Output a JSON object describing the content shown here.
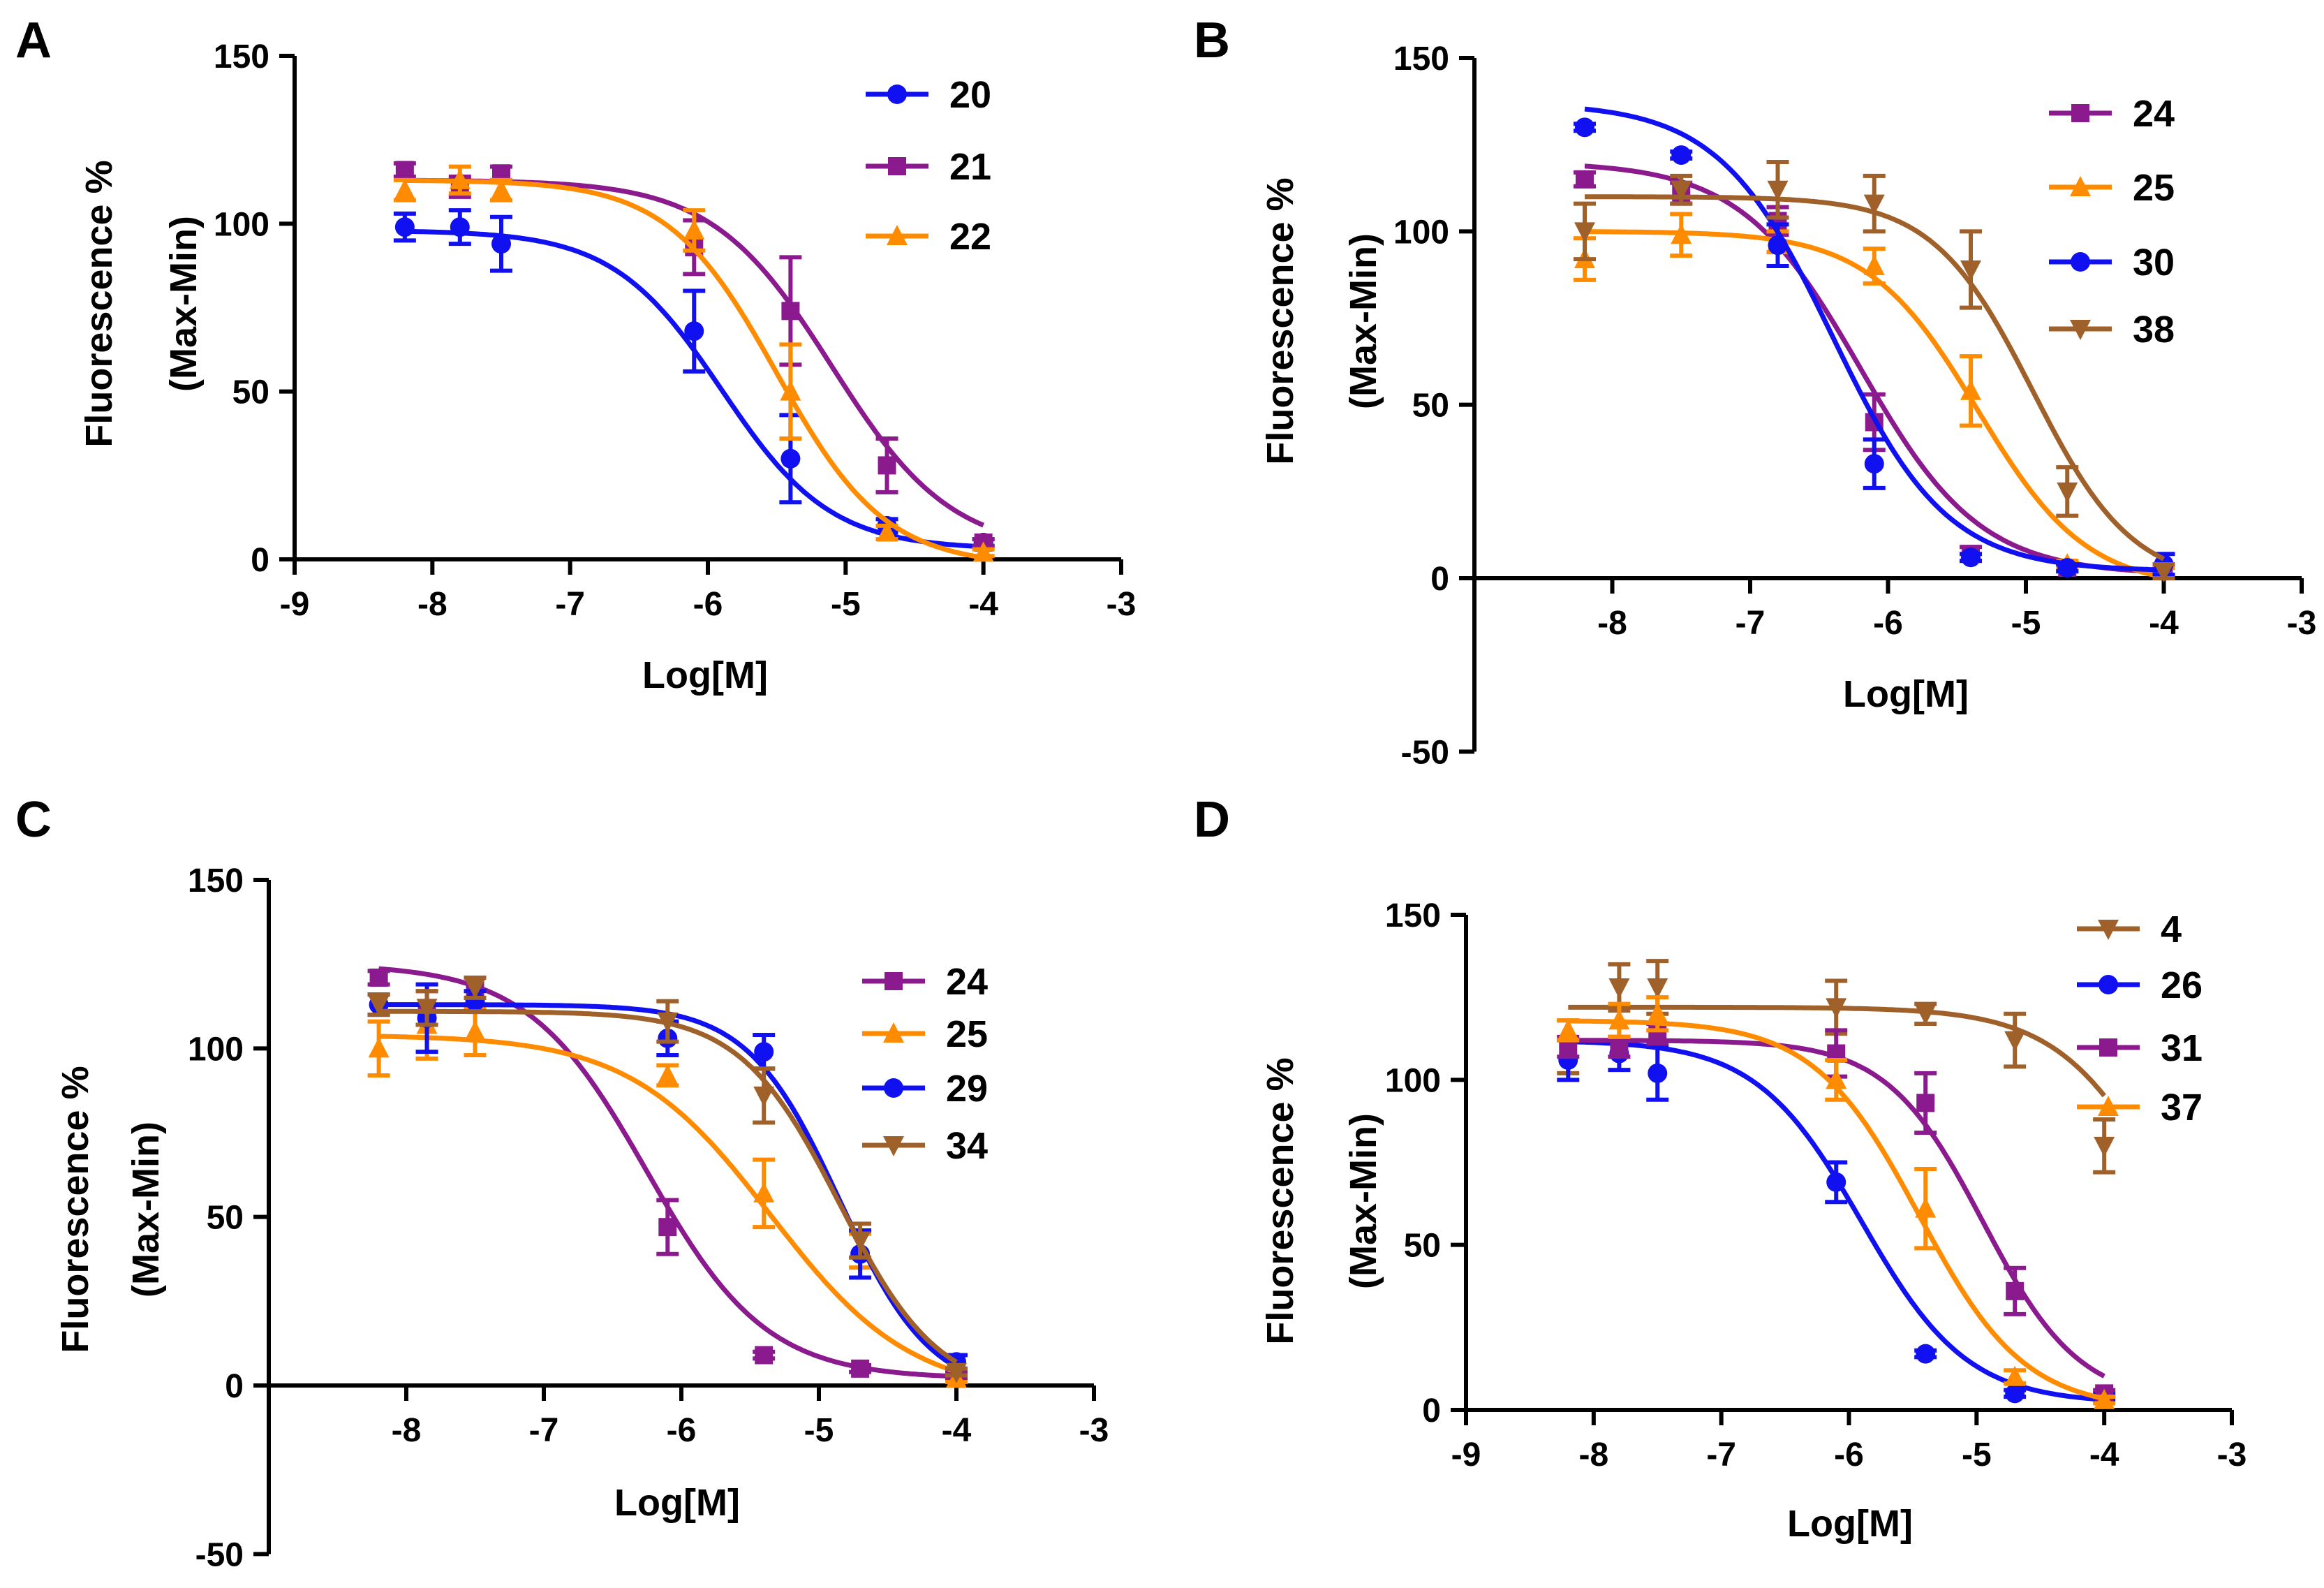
{
  "colors": {
    "blue": "#1010f0",
    "purple": "#8b1a8f",
    "orange": "#ff8c00",
    "brown": "#a0602a"
  },
  "chart_data": [
    {
      "panel": "A",
      "type": "line",
      "xlabel": "Log[M]",
      "ylabel": [
        "Fluorescence %",
        "(Max-Min)"
      ],
      "xlim": [
        -9,
        -3
      ],
      "ylim": [
        0,
        150
      ],
      "xticks": [
        -9,
        -8,
        -7,
        -6,
        -5,
        -4,
        -3
      ],
      "xtick_labels": [
        "-9",
        "-8",
        "-7",
        "-6",
        "-5",
        "-4",
        "-3"
      ],
      "yticks": [
        0,
        50,
        100,
        150
      ],
      "ytick_labels": [
        "0",
        "50",
        "100",
        "150"
      ],
      "legend_position": "top-right",
      "series": [
        {
          "name": "20",
          "color": "blue",
          "marker": "circle",
          "x": [
            -8.2,
            -7.8,
            -7.5,
            -6.1,
            -5.4,
            -4.7,
            -4.0
          ],
          "y": [
            99,
            99,
            94,
            68,
            30,
            10,
            5
          ],
          "err": [
            4,
            5,
            8,
            12,
            13,
            2,
            1
          ],
          "fit": {
            "top": 98,
            "bottom": 3,
            "logEC50": -5.9,
            "hill": 1.1
          }
        },
        {
          "name": "21",
          "color": "purple",
          "marker": "square",
          "x": [
            -8.2,
            -7.8,
            -7.5,
            -6.1,
            -5.4,
            -4.7,
            -4.0
          ],
          "y": [
            116,
            111,
            115,
            93,
            74,
            28,
            5
          ],
          "err": [
            2,
            3,
            2,
            8,
            16,
            8,
            1
          ],
          "fit": {
            "top": 113,
            "bottom": 2,
            "logEC50": -5.1,
            "hill": 1.0
          }
        },
        {
          "name": "22",
          "color": "orange",
          "marker": "triangle",
          "x": [
            -8.2,
            -7.8,
            -7.5,
            -6.1,
            -5.4,
            -4.7,
            -4.0
          ],
          "y": [
            110,
            113,
            110,
            98,
            50,
            8,
            2
          ],
          "err": [
            3,
            4,
            3,
            6,
            14,
            2,
            1
          ],
          "fit": {
            "top": 113,
            "bottom": -2,
            "logEC50": -5.5,
            "hill": 1.1
          }
        }
      ]
    },
    {
      "panel": "B",
      "type": "line",
      "xlabel": "Log[M]",
      "ylabel": [
        "Fluorescence %",
        "(Max-Min)"
      ],
      "xlim": [
        -9,
        -3
      ],
      "ylim": [
        -50,
        150
      ],
      "xticks": [
        -8,
        -7,
        -6,
        -5,
        -4,
        -3
      ],
      "xtick_labels": [
        "-8",
        "-7",
        "-6",
        "-5",
        "-4",
        "-3"
      ],
      "yticks": [
        -50,
        0,
        50,
        100,
        150
      ],
      "ytick_labels": [
        "-50",
        "0",
        "50",
        "100",
        "150"
      ],
      "legend_position": "top-right",
      "series": [
        {
          "name": "24",
          "color": "purple",
          "marker": "square",
          "x": [
            -8.2,
            -7.5,
            -6.8,
            -6.1,
            -5.4,
            -4.7,
            -4.0
          ],
          "y": [
            115,
            111,
            103,
            45,
            7,
            3,
            2
          ],
          "err": [
            2,
            3,
            4,
            8,
            2,
            1,
            1
          ],
          "fit": {
            "top": 120,
            "bottom": 1,
            "logEC50": -6.2,
            "hill": 1.0
          }
        },
        {
          "name": "25",
          "color": "orange",
          "marker": "triangle",
          "x": [
            -8.2,
            -7.5,
            -6.8,
            -6.1,
            -5.4,
            -4.7,
            -4.0
          ],
          "y": [
            92,
            99,
            97,
            90,
            54,
            4,
            2
          ],
          "err": [
            6,
            6,
            3,
            5,
            10,
            1,
            1
          ],
          "fit": {
            "top": 100,
            "bottom": -3,
            "logEC50": -5.35,
            "hill": 1.1
          }
        },
        {
          "name": "30",
          "color": "blue",
          "marker": "circle",
          "x": [
            -8.2,
            -7.5,
            -6.8,
            -6.1,
            -5.4,
            -4.7,
            -4.0
          ],
          "y": [
            130,
            122,
            96,
            33,
            6,
            3,
            4
          ],
          "err": [
            1,
            1,
            6,
            7,
            1,
            1,
            3
          ],
          "fit": {
            "top": 137,
            "bottom": 2,
            "logEC50": -6.4,
            "hill": 1.05
          }
        },
        {
          "name": "38",
          "color": "brown",
          "marker": "triangle-down",
          "x": [
            -8.2,
            -7.5,
            -6.8,
            -6.1,
            -5.4,
            -4.7,
            -4.0
          ],
          "y": [
            100,
            112,
            112,
            108,
            89,
            25,
            2
          ],
          "err": [
            8,
            4,
            8,
            8,
            11,
            7,
            2
          ],
          "fit": {
            "top": 110,
            "bottom": -2,
            "logEC50": -4.95,
            "hill": 1.2
          }
        }
      ]
    },
    {
      "panel": "C",
      "type": "line",
      "xlabel": "Log[M]",
      "ylabel": [
        "Fluorescence %",
        "(Max-Min)"
      ],
      "xlim": [
        -9,
        -3
      ],
      "ylim": [
        -50,
        150
      ],
      "xticks": [
        -8,
        -7,
        -6,
        -5,
        -4,
        -3
      ],
      "xtick_labels": [
        "-8",
        "-7",
        "-6",
        "-5",
        "-4",
        "-3"
      ],
      "yticks": [
        -50,
        0,
        50,
        100,
        150
      ],
      "ytick_labels": [
        "-50",
        "0",
        "50",
        "100",
        "150"
      ],
      "legend_position": "top-right",
      "series": [
        {
          "name": "24",
          "color": "purple",
          "marker": "square",
          "x": [
            -8.2,
            -7.85,
            -7.5,
            -6.1,
            -5.4,
            -4.7,
            -4.0
          ],
          "y": [
            121,
            112,
            118,
            47,
            9,
            5,
            3
          ],
          "err": [
            2,
            5,
            3,
            8,
            1,
            1,
            1
          ],
          "fit": {
            "top": 125,
            "bottom": 2,
            "logEC50": -6.25,
            "hill": 1.0
          }
        },
        {
          "name": "25",
          "color": "orange",
          "marker": "triangle",
          "x": [
            -8.2,
            -7.85,
            -7.5,
            -6.1,
            -5.4,
            -4.7,
            -4.0
          ],
          "y": [
            100,
            107,
            105,
            92,
            57,
            40,
            2
          ],
          "err": [
            8,
            10,
            7,
            3,
            10,
            5,
            1
          ],
          "fit": {
            "top": 104,
            "bottom": -3,
            "logEC50": -5.35,
            "hill": 0.85
          }
        },
        {
          "name": "29",
          "color": "blue",
          "marker": "circle",
          "x": [
            -8.2,
            -7.85,
            -7.5,
            -6.1,
            -5.4,
            -4.7,
            -4.0
          ],
          "y": [
            113,
            109,
            114,
            103,
            99,
            39,
            7
          ],
          "err": [
            3,
            10,
            3,
            5,
            5,
            7,
            2
          ],
          "fit": {
            "top": 113,
            "bottom": -3,
            "logEC50": -4.85,
            "hill": 1.3
          }
        },
        {
          "name": "34",
          "color": "brown",
          "marker": "triangle-down",
          "x": [
            -8.2,
            -7.85,
            -7.5,
            -6.1,
            -5.4,
            -4.7,
            -4.0
          ],
          "y": [
            113,
            112,
            118,
            108,
            86,
            43,
            4
          ],
          "err": [
            3,
            5,
            3,
            6,
            8,
            5,
            1
          ],
          "fit": {
            "top": 111,
            "bottom": -3,
            "logEC50": -4.85,
            "hill": 1.2
          }
        }
      ]
    },
    {
      "panel": "D",
      "type": "line",
      "xlabel": "Log[M]",
      "ylabel": [
        "Fluorescence %",
        "(Max-Min)"
      ],
      "xlim": [
        -9,
        -3
      ],
      "ylim": [
        0,
        150
      ],
      "xticks": [
        -9,
        -8,
        -7,
        -6,
        -5,
        -4,
        -3
      ],
      "xtick_labels": [
        "-9",
        "-8",
        "-7",
        "-6",
        "-5",
        "-4",
        "-3"
      ],
      "yticks": [
        0,
        50,
        100,
        150
      ],
      "ytick_labels": [
        "0",
        "50",
        "100",
        "150"
      ],
      "legend_position": "top-right",
      "series": [
        {
          "name": "4",
          "color": "brown",
          "marker": "triangle-down",
          "x": [
            -8.2,
            -7.8,
            -7.5,
            -6.1,
            -5.4,
            -4.7,
            -4.0
          ],
          "y": [
            110,
            128,
            128,
            122,
            120,
            112,
            80
          ],
          "err": [
            8,
            7,
            8,
            8,
            3,
            8,
            8
          ],
          "fit": {
            "top": 122,
            "bottom": 0,
            "logEC50": -3.45,
            "hill": 1.0
          }
        },
        {
          "name": "26",
          "color": "blue",
          "marker": "circle",
          "x": [
            -8.2,
            -7.8,
            -7.5,
            -6.1,
            -5.4,
            -4.7,
            -4.0
          ],
          "y": [
            106,
            108,
            102,
            69,
            17,
            5,
            4
          ],
          "err": [
            6,
            5,
            8,
            6,
            1,
            1,
            1
          ],
          "fit": {
            "top": 112,
            "bottom": 2,
            "logEC50": -5.9,
            "hill": 1.05
          }
        },
        {
          "name": "31",
          "color": "purple",
          "marker": "square",
          "x": [
            -8.2,
            -7.8,
            -7.5,
            -6.1,
            -5.4,
            -4.7,
            -4.0
          ],
          "y": [
            110,
            110,
            114,
            108,
            93,
            36,
            5
          ],
          "err": [
            3,
            3,
            3,
            7,
            9,
            7,
            1
          ],
          "fit": {
            "top": 112,
            "bottom": 2,
            "logEC50": -4.95,
            "hill": 1.15
          }
        },
        {
          "name": "37",
          "color": "orange",
          "marker": "triangle",
          "x": [
            -8.2,
            -7.8,
            -7.5,
            -6.1,
            -5.4,
            -4.7,
            -4.0
          ],
          "y": [
            115,
            118,
            120,
            100,
            61,
            10,
            3
          ],
          "err": [
            3,
            5,
            5,
            6,
            12,
            2,
            1
          ],
          "fit": {
            "top": 118,
            "bottom": 0,
            "logEC50": -5.45,
            "hill": 1.05
          }
        }
      ]
    }
  ]
}
